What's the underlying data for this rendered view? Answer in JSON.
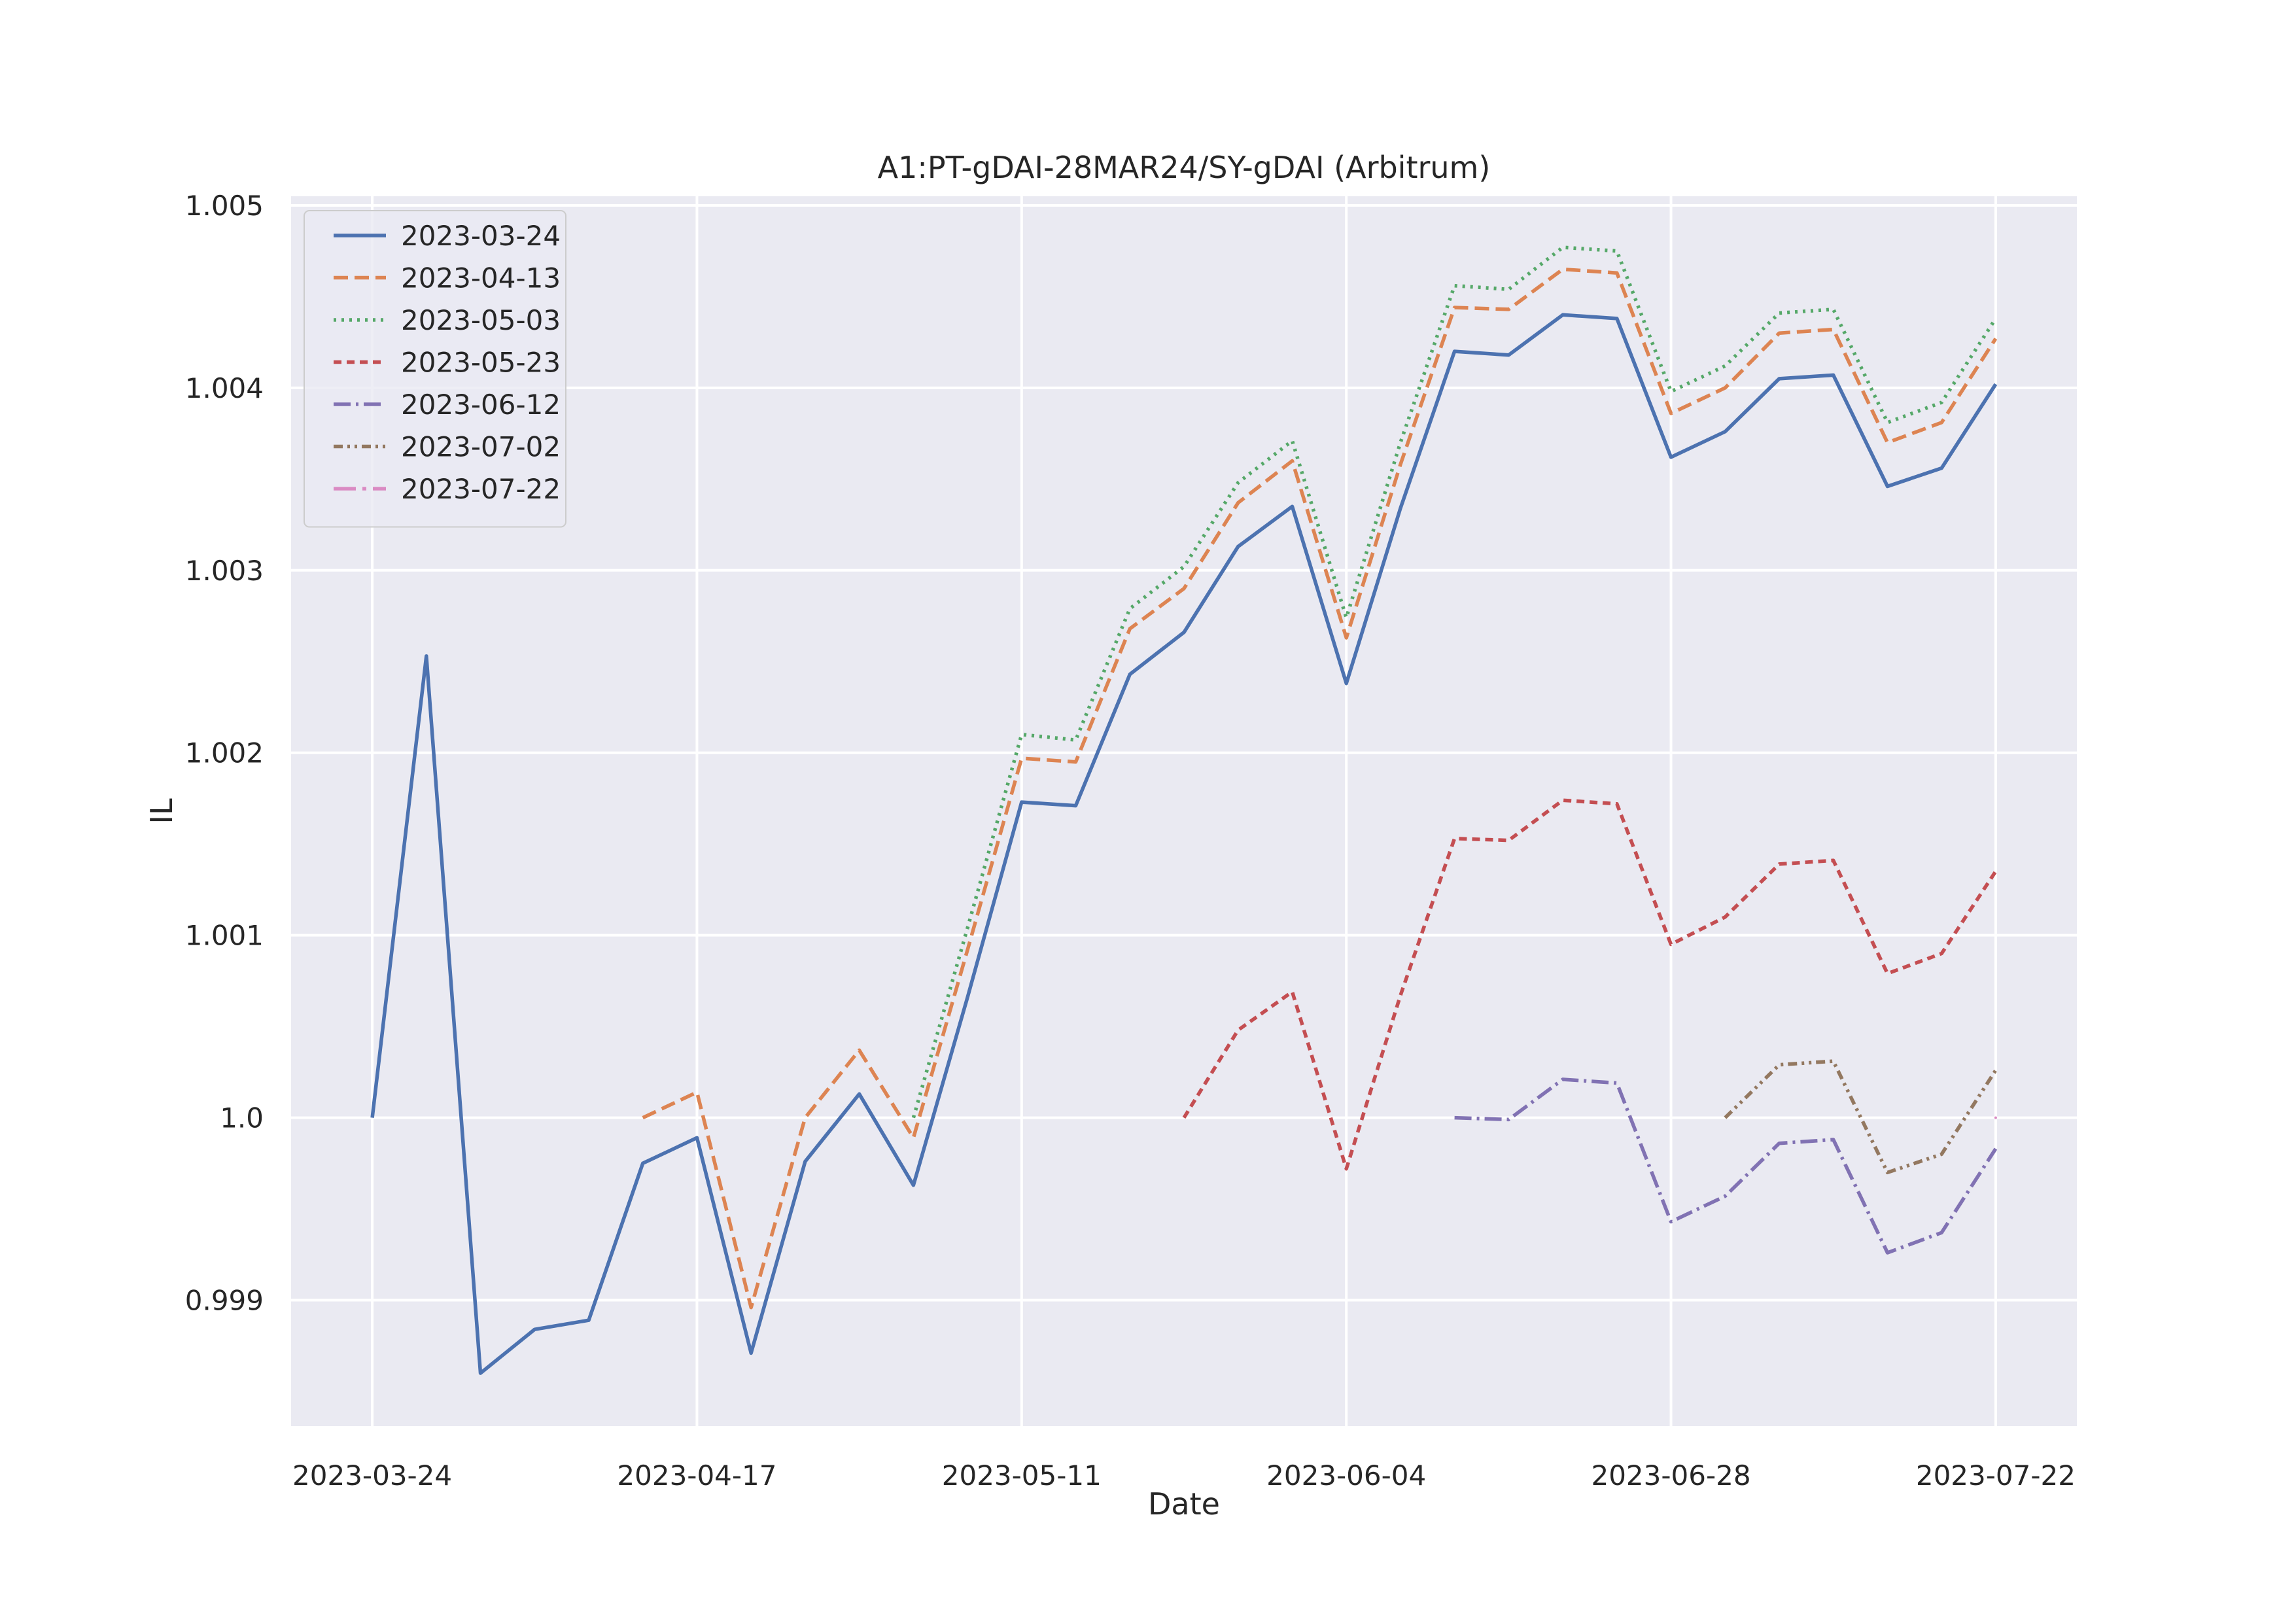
{
  "chart_data": {
    "type": "line",
    "title": "A1:PT-gDAI-28MAR24/SY-gDAI (Arbitrum)",
    "xlabel": "Date",
    "ylabel": "IL",
    "x_axis_type": "date",
    "xlim": [
      "2023-03-18",
      "2023-07-28"
    ],
    "ylim": [
      0.99831,
      1.00505
    ],
    "xticks": [
      "2023-03-24",
      "2023-04-17",
      "2023-05-11",
      "2023-06-04",
      "2023-06-28",
      "2023-07-22"
    ],
    "yticks": [
      0.999,
      1.0,
      1.001,
      1.002,
      1.003,
      1.004,
      1.005
    ],
    "ytick_labels": [
      "0.999",
      "1.0",
      "1.001",
      "1.002",
      "1.003",
      "1.004",
      "1.005"
    ],
    "grid": true,
    "legend_position": "top-left",
    "background": "#eaeaf2",
    "series": [
      {
        "name": "2023-03-24",
        "color": "#4c72b0",
        "dash": "solid",
        "x": [
          "2023-03-24",
          "2023-03-28",
          "2023-04-01",
          "2023-04-05",
          "2023-04-09",
          "2023-04-13",
          "2023-04-17",
          "2023-04-21",
          "2023-04-25",
          "2023-04-29",
          "2023-05-03",
          "2023-05-07",
          "2023-05-11",
          "2023-05-15",
          "2023-05-19",
          "2023-05-23",
          "2023-05-27",
          "2023-05-31",
          "2023-06-04",
          "2023-06-08",
          "2023-06-12",
          "2023-06-16",
          "2023-06-20",
          "2023-06-24",
          "2023-06-28",
          "2023-07-02",
          "2023-07-06",
          "2023-07-10",
          "2023-07-14",
          "2023-07-18",
          "2023-07-22"
        ],
        "y": [
          1.0,
          1.00253,
          0.9986,
          0.99884,
          0.99889,
          0.99975,
          0.99989,
          0.99871,
          0.99976,
          1.00013,
          0.99963,
          1.00066,
          1.00173,
          1.00171,
          1.00243,
          1.00266,
          1.00313,
          1.00335,
          1.00238,
          1.00334,
          1.0042,
          1.00418,
          1.0044,
          1.00438,
          1.00362,
          1.00376,
          1.00405,
          1.00407,
          1.00346,
          1.00356,
          1.00402
        ]
      },
      {
        "name": "2023-04-13",
        "color": "#dd8452",
        "dash": "dashed",
        "x": [
          "2023-04-13",
          "2023-04-17",
          "2023-04-21",
          "2023-04-25",
          "2023-04-29",
          "2023-05-03",
          "2023-05-07",
          "2023-05-11",
          "2023-05-15",
          "2023-05-19",
          "2023-05-23",
          "2023-05-27",
          "2023-05-31",
          "2023-06-04",
          "2023-06-08",
          "2023-06-12",
          "2023-06-16",
          "2023-06-20",
          "2023-06-24",
          "2023-06-28",
          "2023-07-02",
          "2023-07-06",
          "2023-07-10",
          "2023-07-14",
          "2023-07-18",
          "2023-07-22"
        ],
        "y": [
          1.0,
          1.00014,
          0.99896,
          1.0,
          1.00037,
          0.99989,
          1.00092,
          1.00197,
          1.00195,
          1.00268,
          1.0029,
          1.00337,
          1.0036,
          1.00263,
          1.00358,
          1.00444,
          1.00443,
          1.00465,
          1.00463,
          1.00386,
          1.004,
          1.0043,
          1.00432,
          1.0037,
          1.00381,
          1.00427
        ]
      },
      {
        "name": "2023-05-03",
        "color": "#55a868",
        "dash": "dotted",
        "x": [
          "2023-05-03",
          "2023-05-07",
          "2023-05-11",
          "2023-05-15",
          "2023-05-19",
          "2023-05-23",
          "2023-05-27",
          "2023-05-31",
          "2023-06-04",
          "2023-06-08",
          "2023-06-12",
          "2023-06-16",
          "2023-06-20",
          "2023-06-24",
          "2023-06-28",
          "2023-07-02",
          "2023-07-06",
          "2023-07-10",
          "2023-07-14",
          "2023-07-18",
          "2023-07-22"
        ],
        "y": [
          1.0,
          1.00104,
          1.0021,
          1.00207,
          1.00279,
          1.00302,
          1.00348,
          1.00371,
          1.00274,
          1.0037,
          1.00456,
          1.00454,
          1.00477,
          1.00475,
          1.00398,
          1.00412,
          1.00441,
          1.00443,
          1.00381,
          1.00392,
          1.00438
        ]
      },
      {
        "name": "2023-05-23",
        "color": "#c44e52",
        "dash": "densely-dashed",
        "x": [
          "2023-05-23",
          "2023-05-27",
          "2023-05-31",
          "2023-06-04",
          "2023-06-08",
          "2023-06-12",
          "2023-06-16",
          "2023-06-20",
          "2023-06-24",
          "2023-06-28",
          "2023-07-02",
          "2023-07-06",
          "2023-07-10",
          "2023-07-14",
          "2023-07-18",
          "2023-07-22"
        ],
        "y": [
          1.0,
          1.00048,
          1.00069,
          0.99972,
          1.00067,
          1.00153,
          1.00152,
          1.00174,
          1.00172,
          1.00095,
          1.0011,
          1.00139,
          1.00141,
          1.00079,
          1.0009,
          1.00135
        ]
      },
      {
        "name": "2023-06-12",
        "color": "#8172b3",
        "dash": "dashdot",
        "x": [
          "2023-06-12",
          "2023-06-16",
          "2023-06-20",
          "2023-06-24",
          "2023-06-28",
          "2023-07-02",
          "2023-07-06",
          "2023-07-10",
          "2023-07-14",
          "2023-07-18",
          "2023-07-22"
        ],
        "y": [
          1.0,
          0.99999,
          1.00021,
          1.00019,
          0.99943,
          0.99957,
          0.99986,
          0.99988,
          0.99926,
          0.99937,
          0.99983
        ]
      },
      {
        "name": "2023-07-02",
        "color": "#937860",
        "dash": "dash-dot-dot",
        "x": [
          "2023-07-02",
          "2023-07-06",
          "2023-07-10",
          "2023-07-14",
          "2023-07-18",
          "2023-07-22"
        ],
        "y": [
          1.0,
          1.00029,
          1.00031,
          0.9997,
          0.9998,
          1.00026
        ]
      },
      {
        "name": "2023-07-22",
        "color": "#da8bc3",
        "dash": "long-dashdot",
        "x": [
          "2023-07-22"
        ],
        "y": [
          1.0
        ]
      }
    ]
  }
}
